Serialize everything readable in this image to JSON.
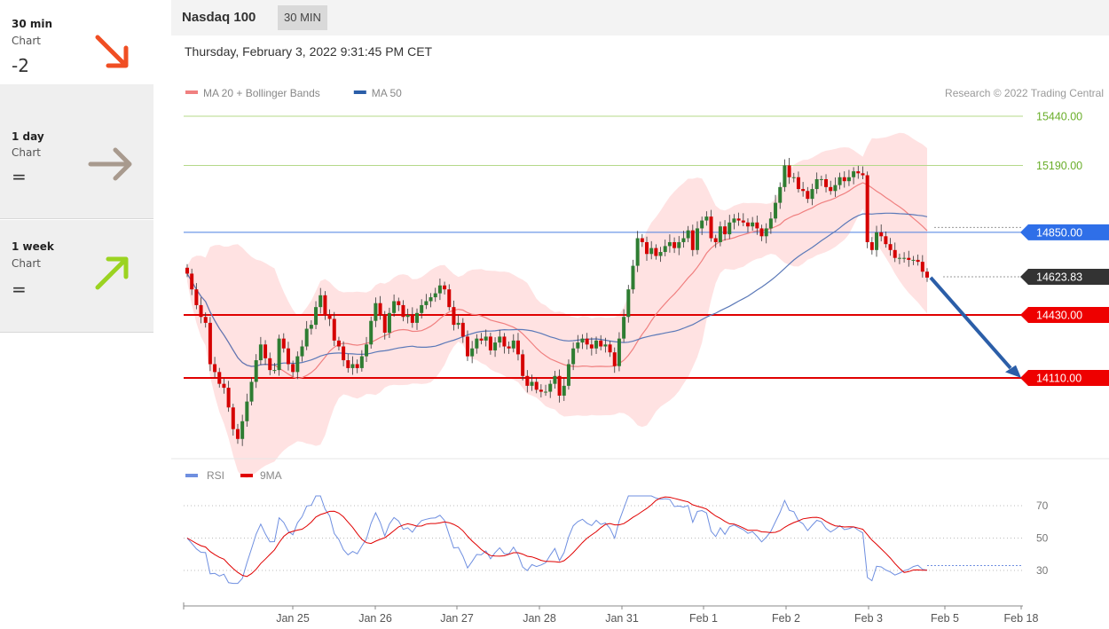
{
  "sidebar": {
    "cards": [
      {
        "title": "30 min",
        "sub": "Chart",
        "score": "-2",
        "arrow": "arrow-down-right-icon",
        "color": "#f04e23"
      },
      {
        "title": "1 day",
        "sub": "Chart",
        "score": "=",
        "arrow": "arrow-right-icon",
        "color": "#a89a8e"
      },
      {
        "title": "1 week",
        "sub": "Chart",
        "score": "=",
        "arrow": "arrow-up-right-icon",
        "color": "#9bd321"
      }
    ]
  },
  "header": {
    "title": "Nasdaq 100",
    "interval": "30 MIN"
  },
  "datetime": "Thursday, February 3, 2022 9:31:45 PM CET",
  "colors": {
    "up": "#2e7d32",
    "down": "#d50000",
    "bands": "#ffd8d8",
    "ma20": "#f08080",
    "ma50": "#5b79b8",
    "support": "#e00000",
    "resist": "#b5d98a",
    "pivot": "#4a7fe0",
    "arrow": "#2b5ea8",
    "rsi": "#6f8fe0",
    "rsi_ma": "#e00000"
  },
  "chart_data": {
    "type": "candlestick",
    "legend": [
      {
        "label": "MA 20 + Bollinger Bands",
        "color": "#f08080"
      },
      {
        "label": "MA 50",
        "color": "#2b5ea8"
      }
    ],
    "credit": "Research © 2022 Trading Central",
    "x_ticks": [
      "Jan 25",
      "Jan 26",
      "Jan 27",
      "Jan 28",
      "Jan 31",
      "Feb 1",
      "Feb 2",
      "Feb 3",
      "Feb 5",
      "Feb 18"
    ],
    "levels": [
      {
        "value": 15440,
        "label": "15440.00",
        "kind": "resistance"
      },
      {
        "value": 15190,
        "label": "15190.00",
        "kind": "resistance"
      },
      {
        "value": 14850,
        "label": "14850.00",
        "kind": "pivot"
      },
      {
        "value": 14623.83,
        "label": "14623.83",
        "kind": "last"
      },
      {
        "value": 14430,
        "label": "14430.00",
        "kind": "support"
      },
      {
        "value": 14110,
        "label": "14110.00",
        "kind": "support"
      }
    ],
    "ohlc_close": [
      14640,
      14560,
      14480,
      14420,
      14390,
      14180,
      14140,
      14080,
      14060,
      13960,
      13850,
      13800,
      13890,
      13990,
      14090,
      14200,
      14280,
      14210,
      14150,
      14150,
      14310,
      14260,
      14180,
      14140,
      14220,
      14270,
      14360,
      14380,
      14470,
      14530,
      14430,
      14410,
      14300,
      14270,
      14200,
      14160,
      14180,
      14160,
      14220,
      14280,
      14400,
      14490,
      14430,
      14340,
      14440,
      14500,
      14480,
      14420,
      14430,
      14390,
      14440,
      14480,
      14500,
      14520,
      14540,
      14580,
      14560,
      14470,
      14380,
      14390,
      14320,
      14220,
      14260,
      14310,
      14300,
      14320,
      14250,
      14290,
      14320,
      14270,
      14260,
      14300,
      14230,
      14120,
      14070,
      14090,
      14050,
      14040,
      14040,
      14080,
      14120,
      14020,
      14070,
      14180,
      14260,
      14290,
      14310,
      14280,
      14260,
      14300,
      14270,
      14280,
      14240,
      14170,
      14310,
      14420,
      14560,
      14680,
      14820,
      14800,
      14740,
      14770,
      14730,
      14750,
      14780,
      14800,
      14770,
      14800,
      14820,
      14860,
      14760,
      14870,
      14910,
      14930,
      14820,
      14800,
      14880,
      14840,
      14900,
      14920,
      14910,
      14900,
      14880,
      14900,
      14870,
      14830,
      14870,
      14920,
      15000,
      15080,
      15190,
      15130,
      15130,
      15070,
      15060,
      15020,
      15070,
      15120,
      15120,
      15080,
      15060,
      15090,
      15130,
      15110,
      15130,
      15160,
      15150,
      15140,
      14800,
      14760,
      14850,
      14830,
      14790,
      14760,
      14720,
      14720,
      14720,
      14710,
      14710,
      14700,
      14650,
      14620
    ],
    "rsi": {
      "label": "RSI",
      "ma_label": "9MA",
      "ticks": [
        30,
        50,
        70
      ],
      "last": 33,
      "range": [
        20,
        80
      ]
    }
  }
}
